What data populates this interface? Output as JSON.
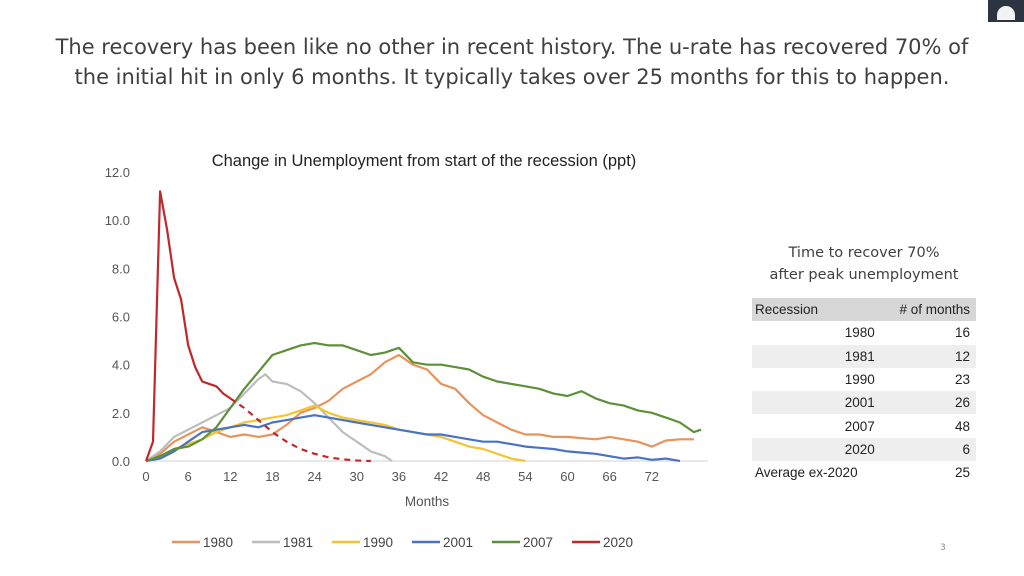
{
  "slide": {
    "headline_line1": "The recovery has been like no other in recent history. The u-rate has recovered 70% of",
    "headline_line2": "the initial hit in only 6 months. It typically takes over 25 months for this to happen.",
    "page_number": "3"
  },
  "recovery_table": {
    "caption_line1": "Time to recover 70%",
    "caption_line2": "after peak unemployment",
    "header": {
      "recession": "Recession",
      "months": "# of months"
    },
    "rows": [
      {
        "recession": "1980",
        "months": "16"
      },
      {
        "recession": "1981",
        "months": "12"
      },
      {
        "recession": "1990",
        "months": "23"
      },
      {
        "recession": "2001",
        "months": "26"
      },
      {
        "recession": "2007",
        "months": "48"
      },
      {
        "recession": "2020",
        "months": "6"
      }
    ],
    "average": {
      "label": "Average ex-2020",
      "months": "25"
    }
  },
  "chart_data": {
    "type": "line",
    "title": "Change in Unemployment from start of the recession (ppt)",
    "xlabel": "Months",
    "ylabel": "",
    "xlim": [
      0,
      80
    ],
    "ylim": [
      0,
      12
    ],
    "x_ticks": [
      0,
      6,
      12,
      18,
      24,
      30,
      36,
      42,
      48,
      54,
      60,
      66,
      72
    ],
    "y_ticks": [
      "0.0",
      "2.0",
      "4.0",
      "6.0",
      "8.0",
      "10.0",
      "12.0"
    ],
    "legend_position": "bottom",
    "series": [
      {
        "name": "1980",
        "color": "#e8935a",
        "points": [
          [
            0,
            0
          ],
          [
            2,
            0.3
          ],
          [
            4,
            0.8
          ],
          [
            6,
            1.1
          ],
          [
            8,
            1.4
          ],
          [
            10,
            1.2
          ],
          [
            12,
            1.0
          ],
          [
            14,
            1.1
          ],
          [
            16,
            1.0
          ],
          [
            18,
            1.1
          ],
          [
            20,
            1.5
          ],
          [
            22,
            2.0
          ],
          [
            24,
            2.2
          ],
          [
            26,
            2.5
          ],
          [
            28,
            3.0
          ],
          [
            30,
            3.3
          ],
          [
            32,
            3.6
          ],
          [
            34,
            4.1
          ],
          [
            36,
            4.4
          ],
          [
            38,
            4.0
          ],
          [
            40,
            3.8
          ],
          [
            42,
            3.2
          ],
          [
            44,
            3.0
          ],
          [
            46,
            2.4
          ],
          [
            48,
            1.9
          ],
          [
            50,
            1.6
          ],
          [
            52,
            1.3
          ],
          [
            54,
            1.1
          ],
          [
            56,
            1.1
          ],
          [
            58,
            1.0
          ],
          [
            60,
            1.0
          ],
          [
            62,
            0.95
          ],
          [
            64,
            0.9
          ],
          [
            66,
            1.0
          ],
          [
            68,
            0.9
          ],
          [
            70,
            0.8
          ],
          [
            72,
            0.6
          ],
          [
            74,
            0.85
          ],
          [
            76,
            0.9
          ],
          [
            78,
            0.9
          ]
        ]
      },
      {
        "name": "1981",
        "color": "#bdbdbd",
        "points": [
          [
            0,
            0
          ],
          [
            2,
            0.4
          ],
          [
            4,
            1.0
          ],
          [
            6,
            1.3
          ],
          [
            8,
            1.6
          ],
          [
            10,
            1.9
          ],
          [
            12,
            2.2
          ],
          [
            14,
            2.8
          ],
          [
            16,
            3.4
          ],
          [
            17,
            3.6
          ],
          [
            18,
            3.3
          ],
          [
            20,
            3.2
          ],
          [
            22,
            2.9
          ],
          [
            24,
            2.4
          ],
          [
            26,
            1.8
          ],
          [
            28,
            1.2
          ],
          [
            30,
            0.8
          ],
          [
            32,
            0.4
          ],
          [
            34,
            0.2
          ],
          [
            35,
            0
          ]
        ]
      },
      {
        "name": "1990",
        "color": "#f4c430",
        "points": [
          [
            0,
            0
          ],
          [
            2,
            0.2
          ],
          [
            4,
            0.5
          ],
          [
            6,
            0.7
          ],
          [
            8,
            0.9
          ],
          [
            10,
            1.2
          ],
          [
            12,
            1.4
          ],
          [
            14,
            1.6
          ],
          [
            16,
            1.7
          ],
          [
            18,
            1.8
          ],
          [
            20,
            1.9
          ],
          [
            22,
            2.1
          ],
          [
            24,
            2.3
          ],
          [
            26,
            2.0
          ],
          [
            28,
            1.8
          ],
          [
            30,
            1.7
          ],
          [
            32,
            1.6
          ],
          [
            34,
            1.5
          ],
          [
            36,
            1.3
          ],
          [
            38,
            1.2
          ],
          [
            40,
            1.1
          ],
          [
            42,
            1.0
          ],
          [
            44,
            0.8
          ],
          [
            46,
            0.6
          ],
          [
            48,
            0.5
          ],
          [
            50,
            0.3
          ],
          [
            52,
            0.1
          ],
          [
            54,
            0
          ]
        ]
      },
      {
        "name": "2001",
        "color": "#4a72c4",
        "points": [
          [
            0,
            0
          ],
          [
            2,
            0.1
          ],
          [
            4,
            0.4
          ],
          [
            6,
            0.8
          ],
          [
            8,
            1.2
          ],
          [
            10,
            1.3
          ],
          [
            12,
            1.4
          ],
          [
            14,
            1.5
          ],
          [
            16,
            1.4
          ],
          [
            18,
            1.6
          ],
          [
            20,
            1.7
          ],
          [
            22,
            1.8
          ],
          [
            24,
            1.9
          ],
          [
            26,
            1.8
          ],
          [
            28,
            1.7
          ],
          [
            30,
            1.6
          ],
          [
            32,
            1.5
          ],
          [
            34,
            1.4
          ],
          [
            36,
            1.3
          ],
          [
            38,
            1.2
          ],
          [
            40,
            1.1
          ],
          [
            42,
            1.1
          ],
          [
            44,
            1.0
          ],
          [
            46,
            0.9
          ],
          [
            48,
            0.8
          ],
          [
            50,
            0.8
          ],
          [
            52,
            0.7
          ],
          [
            54,
            0.6
          ],
          [
            56,
            0.55
          ],
          [
            58,
            0.5
          ],
          [
            60,
            0.4
          ],
          [
            62,
            0.35
          ],
          [
            64,
            0.3
          ],
          [
            66,
            0.2
          ],
          [
            68,
            0.1
          ],
          [
            70,
            0.15
          ],
          [
            72,
            0.05
          ],
          [
            74,
            0.1
          ],
          [
            76,
            0
          ]
        ]
      },
      {
        "name": "2007",
        "color": "#5e8f3a",
        "points": [
          [
            0,
            0
          ],
          [
            2,
            0.2
          ],
          [
            4,
            0.5
          ],
          [
            6,
            0.6
          ],
          [
            8,
            0.9
          ],
          [
            10,
            1.4
          ],
          [
            12,
            2.2
          ],
          [
            14,
            3.0
          ],
          [
            16,
            3.7
          ],
          [
            18,
            4.4
          ],
          [
            20,
            4.6
          ],
          [
            22,
            4.8
          ],
          [
            24,
            4.9
          ],
          [
            26,
            4.8
          ],
          [
            28,
            4.8
          ],
          [
            30,
            4.6
          ],
          [
            32,
            4.4
          ],
          [
            34,
            4.5
          ],
          [
            36,
            4.7
          ],
          [
            38,
            4.1
          ],
          [
            40,
            4.0
          ],
          [
            42,
            4.0
          ],
          [
            44,
            3.9
          ],
          [
            46,
            3.8
          ],
          [
            48,
            3.5
          ],
          [
            50,
            3.3
          ],
          [
            52,
            3.2
          ],
          [
            54,
            3.1
          ],
          [
            56,
            3.0
          ],
          [
            58,
            2.8
          ],
          [
            60,
            2.7
          ],
          [
            62,
            2.9
          ],
          [
            64,
            2.6
          ],
          [
            66,
            2.4
          ],
          [
            68,
            2.3
          ],
          [
            70,
            2.1
          ],
          [
            72,
            2.0
          ],
          [
            74,
            1.8
          ],
          [
            76,
            1.6
          ],
          [
            78,
            1.2
          ],
          [
            79,
            1.3
          ]
        ]
      },
      {
        "name": "2020",
        "color": "#c0282b",
        "points": [
          [
            0,
            0
          ],
          [
            1,
            0.8
          ],
          [
            2,
            11.2
          ],
          [
            3,
            9.6
          ],
          [
            4,
            7.6
          ],
          [
            5,
            6.7
          ],
          [
            6,
            4.8
          ],
          [
            7,
            3.9
          ],
          [
            8,
            3.3
          ],
          [
            9,
            3.2
          ],
          [
            10,
            3.1
          ],
          [
            11,
            2.8
          ],
          [
            12,
            2.6
          ]
        ],
        "projection": [
          [
            12,
            2.6
          ],
          [
            14,
            2.2
          ],
          [
            16,
            1.7
          ],
          [
            18,
            1.2
          ],
          [
            20,
            0.8
          ],
          [
            22,
            0.5
          ],
          [
            24,
            0.3
          ],
          [
            26,
            0.15
          ],
          [
            28,
            0.07
          ],
          [
            30,
            0.02
          ],
          [
            32,
            0
          ]
        ]
      }
    ]
  }
}
